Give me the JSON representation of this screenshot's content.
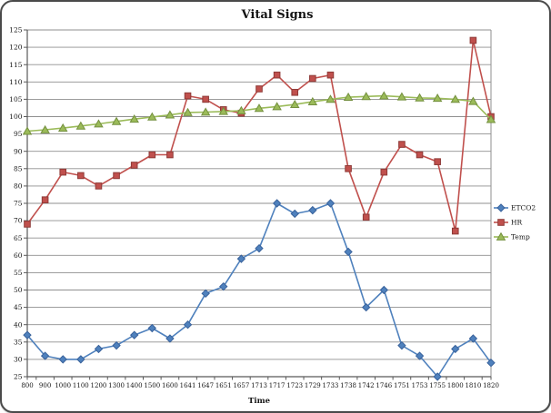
{
  "chart_data": {
    "type": "line",
    "title": "Vital Signs",
    "xlabel": "Time",
    "ylabel": "",
    "ylim": [
      25,
      125
    ],
    "yticks": [
      25,
      30,
      35,
      40,
      45,
      50,
      55,
      60,
      65,
      70,
      75,
      80,
      85,
      90,
      95,
      100,
      105,
      110,
      115,
      120,
      125
    ],
    "grid": true,
    "legend_position": "right",
    "categories": [
      "800",
      "900",
      "1000",
      "1100",
      "1200",
      "1300",
      "1400",
      "1500",
      "1600",
      "1641",
      "1647",
      "1651",
      "1657",
      "1713",
      "1717",
      "1723",
      "1729",
      "1733",
      "1738",
      "1742",
      "1746",
      "1751",
      "1753",
      "1755",
      "1800",
      "1810",
      "1820"
    ],
    "series": [
      {
        "name": "ETCO2",
        "marker": "diamond",
        "color": "#4F81BD",
        "stroke": "#39629b",
        "values": [
          37,
          31,
          30,
          30,
          33,
          34,
          37,
          39,
          36,
          40,
          49,
          51,
          59,
          62,
          75,
          72,
          73,
          75,
          61,
          45,
          50,
          34,
          31,
          25,
          33,
          36,
          29
        ]
      },
      {
        "name": "HR",
        "marker": "square",
        "color": "#C0504D",
        "stroke": "#8e3a37",
        "values": [
          69,
          76,
          84,
          83,
          80,
          83,
          86,
          89,
          89,
          106,
          105,
          102,
          101,
          108,
          112,
          107,
          111,
          112,
          85,
          71,
          84,
          92,
          89,
          87,
          67,
          122,
          100
        ]
      },
      {
        "name": "Temp",
        "marker": "triangle",
        "color": "#9BBB59",
        "stroke": "#74903f",
        "values": [
          95.8,
          96.2,
          96.7,
          97.3,
          97.9,
          98.6,
          99.3,
          99.9,
          100.5,
          101.2,
          101.3,
          101.5,
          101.7,
          102.4,
          102.9,
          103.5,
          104.3,
          105.0,
          105.6,
          105.8,
          106.0,
          105.7,
          105.4,
          105.3,
          105.0,
          104.4,
          99.2
        ]
      }
    ],
    "styles": {
      "gridline_color": "#8f8f8f",
      "axis_color": "#595959",
      "label_color": "#141414"
    }
  }
}
